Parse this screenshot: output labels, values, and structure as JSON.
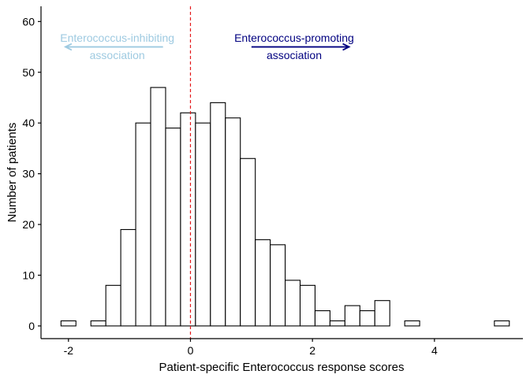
{
  "chart_data": {
    "type": "bar",
    "subtype": "histogram",
    "xlabel": "Patient-specific Enterococcus response scores",
    "ylabel": "Number of patients",
    "xlim": [
      -2.45,
      5.45
    ],
    "ylim": [
      -2.5,
      63
    ],
    "xticks": [
      -2,
      0,
      2,
      4
    ],
    "yticks": [
      0,
      10,
      20,
      30,
      40,
      50,
      60
    ],
    "bin_width": 0.245,
    "bin_start": -2.1225,
    "counts": [
      1,
      0,
      1,
      8,
      19,
      40,
      47,
      39,
      42,
      40,
      44,
      41,
      33,
      17,
      16,
      9,
      8,
      3,
      1,
      4,
      3,
      5,
      0,
      1,
      0,
      0,
      0,
      0,
      0,
      1
    ],
    "reference_line": {
      "x": 0,
      "color": "#e41a1c",
      "style": "dashed"
    },
    "annotations": [
      {
        "id": "inhibiting",
        "lines": [
          "Enterococcus-inhibiting",
          "association"
        ],
        "color": "#9ecae1",
        "arrow_direction": "left",
        "text_x": -1.2,
        "arrow_y": 55,
        "arrow_from": -0.45,
        "arrow_to": -2.05
      },
      {
        "id": "promoting",
        "lines": [
          "Enterococcus-promoting",
          "association"
        ],
        "color": "#000080",
        "arrow_direction": "right",
        "text_x": 1.7,
        "arrow_y": 55,
        "arrow_from": 1.0,
        "arrow_to": 2.6
      }
    ],
    "grid": false,
    "legend": "none"
  }
}
